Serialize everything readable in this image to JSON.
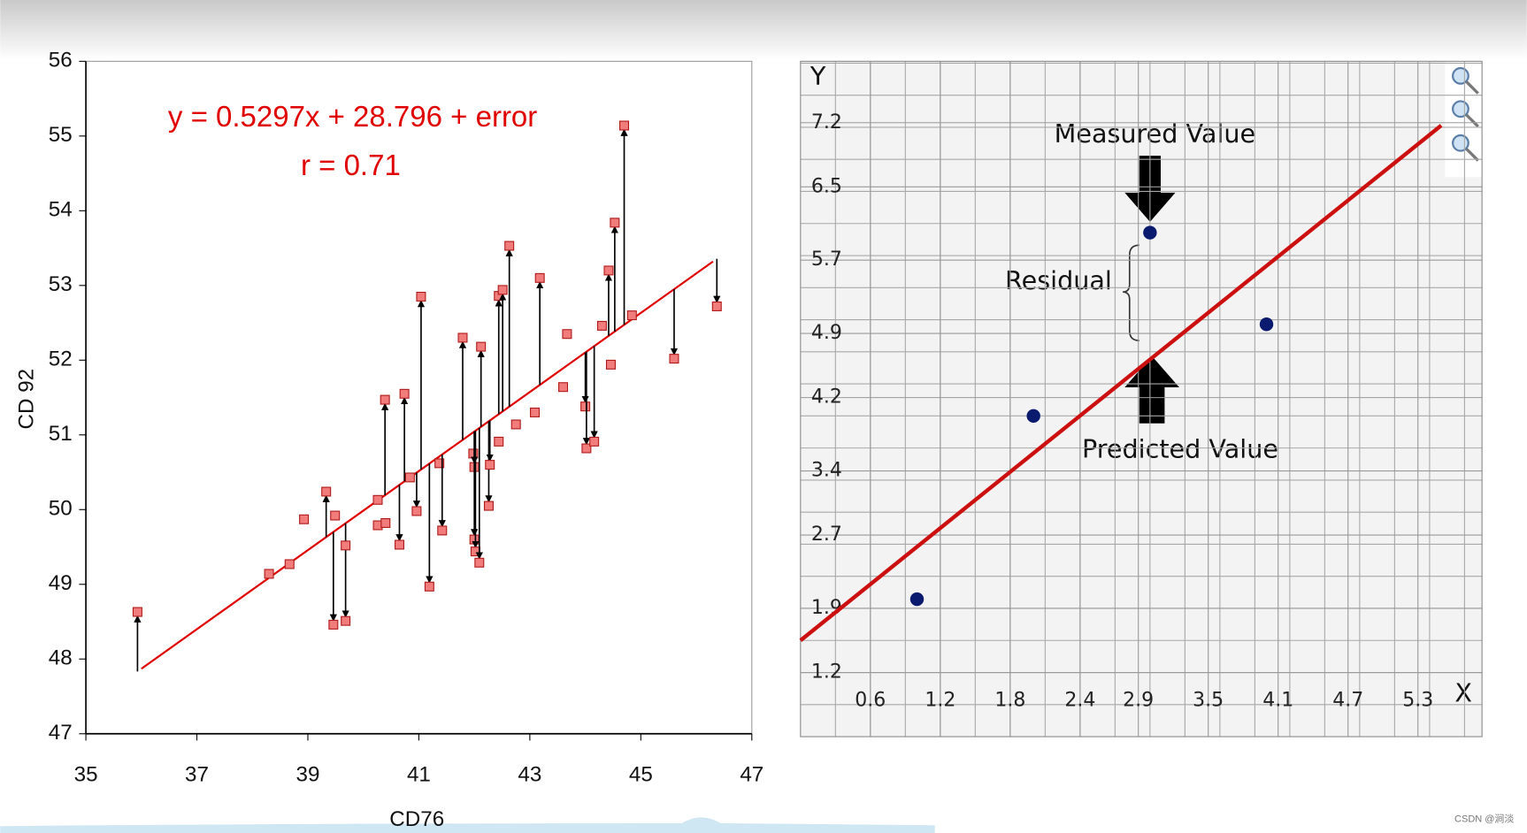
{
  "chart_data": [
    {
      "type": "scatter",
      "x_label": "CD76",
      "y_label": "CD 92",
      "annotations": [
        "y = 0.5297x + 28.796 + error",
        "r = 0.71"
      ],
      "xlim": [
        35,
        47
      ],
      "xticks": [
        35,
        37,
        39,
        41,
        43,
        45,
        47
      ],
      "ylim": [
        47,
        56
      ],
      "yticks": [
        47,
        48,
        49,
        50,
        51,
        52,
        53,
        54,
        55,
        56
      ],
      "x": [
        35.93,
        38.3,
        38.67,
        38.93,
        39.33,
        39.49,
        39.46,
        39.68,
        39.68,
        40.26,
        40.26,
        40.4,
        40.39,
        40.65,
        40.74,
        40.84,
        40.96,
        41.04,
        41.19,
        41.37,
        41.42,
        41.79,
        41.98,
        42.0,
        42.0,
        42.02,
        42.09,
        42.12,
        42.26,
        42.28,
        42.44,
        42.44,
        42.51,
        42.63,
        42.75,
        43.09,
        43.18,
        43.6,
        43.67,
        44.0,
        44.02,
        44.16,
        44.3,
        44.42,
        44.46,
        44.53,
        44.7,
        44.84,
        45.6,
        46.37
      ],
      "values": [
        48.63,
        49.14,
        49.27,
        49.87,
        50.24,
        49.92,
        48.46,
        48.51,
        49.52,
        50.13,
        49.79,
        49.82,
        51.47,
        49.53,
        51.55,
        50.43,
        49.98,
        52.85,
        48.97,
        50.62,
        49.72,
        52.3,
        50.75,
        50.57,
        49.6,
        49.44,
        49.29,
        52.18,
        50.05,
        50.6,
        50.91,
        52.86,
        52.94,
        53.53,
        51.14,
        51.3,
        53.1,
        51.64,
        52.35,
        51.38,
        50.82,
        50.91,
        52.46,
        53.2,
        51.94,
        53.84,
        55.14,
        52.6,
        52.02,
        52.72
      ],
      "color": "#f07c7c",
      "line": {
        "x": [
          36,
          46.3
        ],
        "y": [
          47.87,
          53.32
        ],
        "color": "#e00000"
      }
    },
    {
      "type": "scatter",
      "x_label": "X",
      "y_label": "Y",
      "annotations": [
        "Measured Value",
        "Residual",
        "Predicted Value"
      ],
      "xlim": [
        0,
        5.85
      ],
      "xticks": [
        0.6,
        1.2,
        1.8,
        2.4,
        2.9,
        3.5,
        4.1,
        4.7,
        5.3
      ],
      "ylim": [
        0.5,
        7.87
      ],
      "yticks": [
        1.2,
        1.9,
        2.7,
        3.4,
        4.2,
        4.9,
        5.7,
        6.5,
        7.2
      ],
      "grid": true,
      "x": [
        1,
        2,
        3,
        4
      ],
      "values": [
        2,
        4,
        6,
        5
      ],
      "color": "#0a1a6e",
      "line": {
        "x": [
          0,
          5.5
        ],
        "y": [
          1.55,
          7.17
        ],
        "color": "#cc1010"
      }
    }
  ],
  "watermark": "CSDN @涧淡"
}
